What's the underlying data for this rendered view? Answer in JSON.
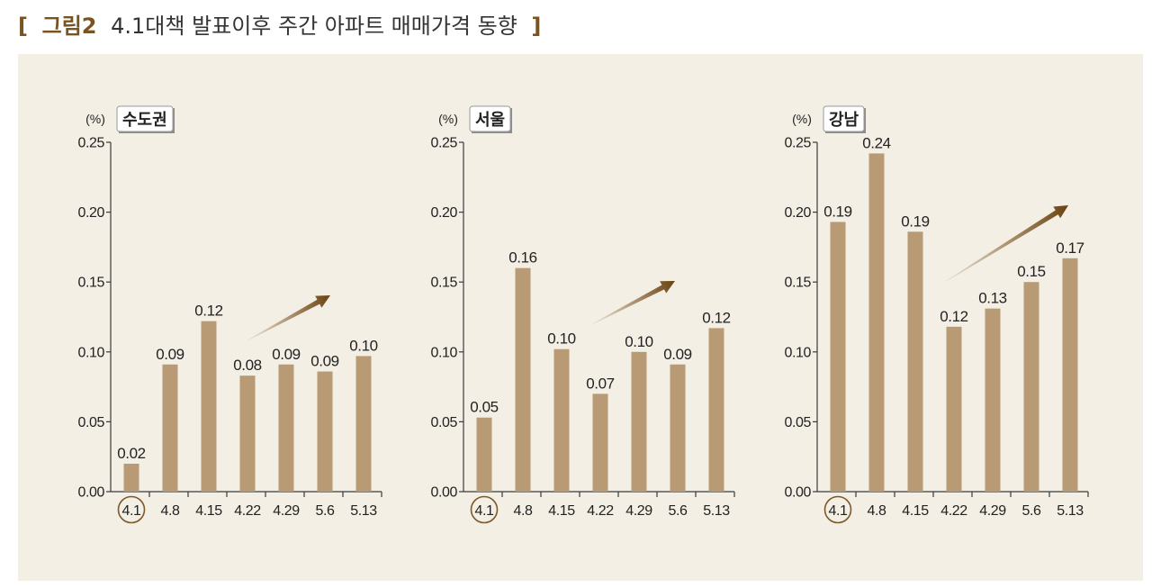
{
  "figure": {
    "bracket_open": "[",
    "label": "그림2",
    "title": "4.1대책 발표이후 주간 아파트 매매가격 동향",
    "bracket_close": "]"
  },
  "colors": {
    "accent_brown": "#7a5322",
    "title_text": "#333333",
    "panel": "#f3efe5",
    "bar": "#b89b74",
    "axis": "#3a3a3a",
    "text": "#222222",
    "highlight_circle": "#7d5a2a",
    "arrow_tail": "#efe6d6",
    "arrow_head": "#6a4210",
    "box_border": "#9a9a9a",
    "box_shadow": "#8c8c8c"
  },
  "chart_data": [
    {
      "type": "bar",
      "title": "수도권",
      "unit_label": "(%)",
      "categories": [
        "4.1",
        "4.8",
        "4.15",
        "4.22",
        "4.29",
        "5.6",
        "5.13"
      ],
      "values": [
        0.02,
        0.091,
        0.122,
        0.083,
        0.091,
        0.086,
        0.097
      ],
      "value_labels": [
        "0.02",
        "0.09",
        "0.12",
        "0.08",
        "0.09",
        "0.09",
        "0.10"
      ],
      "ylim": [
        0,
        0.25
      ],
      "ytick_labels": [
        "0.00",
        "0.05",
        "0.10",
        "0.15",
        "0.20",
        "0.25"
      ],
      "highlight_index": 0,
      "grid": false
    },
    {
      "type": "bar",
      "title": "서울",
      "unit_label": "(%)",
      "categories": [
        "4.1",
        "4.8",
        "4.15",
        "4.22",
        "4.29",
        "5.6",
        "5.13"
      ],
      "values": [
        0.053,
        0.16,
        0.102,
        0.07,
        0.1,
        0.091,
        0.117
      ],
      "value_labels": [
        "0.05",
        "0.16",
        "0.10",
        "0.07",
        "0.10",
        "0.09",
        "0.12"
      ],
      "ylim": [
        0,
        0.25
      ],
      "ytick_labels": [
        "0.00",
        "0.05",
        "0.10",
        "0.15",
        "0.20",
        "0.25"
      ],
      "highlight_index": 0,
      "grid": false
    },
    {
      "type": "bar",
      "title": "강남",
      "unit_label": "(%)",
      "categories": [
        "4.1",
        "4.8",
        "4.15",
        "4.22",
        "4.29",
        "5.6",
        "5.13"
      ],
      "values": [
        0.193,
        0.242,
        0.186,
        0.118,
        0.131,
        0.15,
        0.167
      ],
      "value_labels": [
        "0.19",
        "0.24",
        "0.19",
        "0.12",
        "0.13",
        "0.15",
        "0.17"
      ],
      "ylim": [
        0,
        0.25
      ],
      "ytick_labels": [
        "0.00",
        "0.05",
        "0.10",
        "0.15",
        "0.20",
        "0.25"
      ],
      "highlight_index": 0,
      "grid": false
    }
  ]
}
